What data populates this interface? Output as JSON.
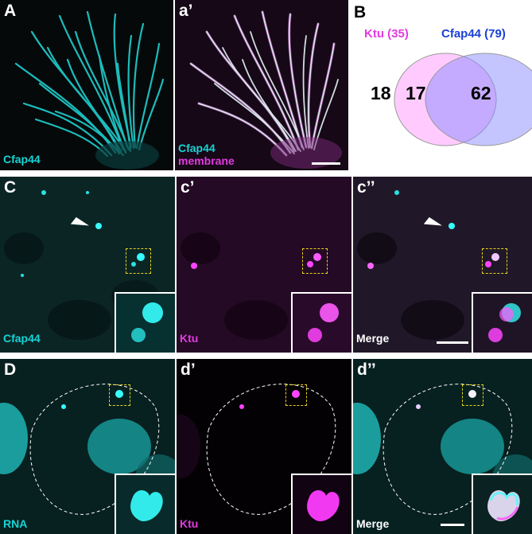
{
  "row1": {
    "panel_A": {
      "label": "A",
      "channels": [
        "Cfap44"
      ]
    },
    "panel_a1": {
      "label": "a’",
      "channels": [
        "Cfap44",
        "membrane"
      ]
    }
  },
  "venn": {
    "label": "B",
    "set1": {
      "name": "Ktu (35)",
      "color": "#e23be2"
    },
    "set2": {
      "name": "Cfap44 (79)",
      "color": "#1a40d8"
    },
    "only1": "18",
    "both": "17",
    "only2": "62"
  },
  "row2": {
    "panel_C": {
      "label": "C",
      "channel": "Cfap44"
    },
    "panel_c1": {
      "label": "c’",
      "channel": "Ktu"
    },
    "panel_c2": {
      "label": "c’’",
      "channel": "Merge"
    }
  },
  "row3": {
    "panel_D": {
      "label": "D",
      "channel": "RNA"
    },
    "panel_d1": {
      "label": "d’",
      "channel": "Ktu"
    },
    "panel_d2": {
      "label": "d’’",
      "channel": "Merge"
    }
  },
  "colors": {
    "cyan": "#17d4d4",
    "magenta": "#e23be2",
    "box": "#e6d21a"
  }
}
